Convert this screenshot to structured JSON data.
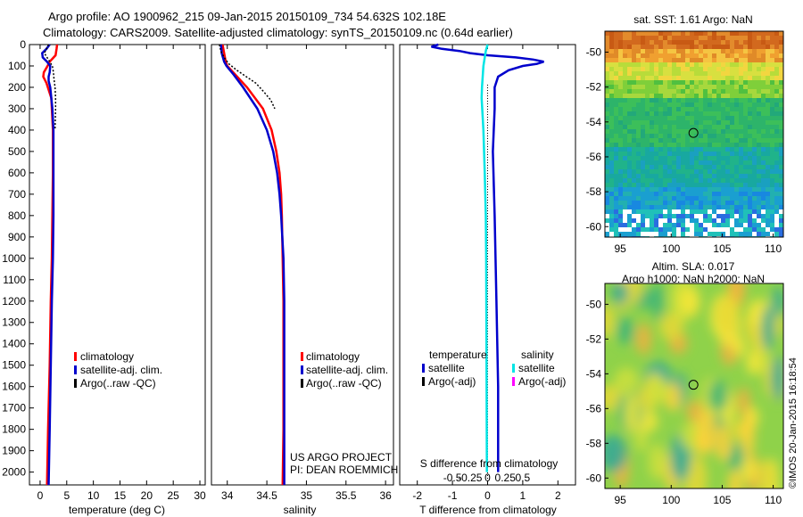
{
  "header": {
    "line1": "Argo profile: AO 1900962_215 09-Jan-2015 20150109_734 54.632S 102.18E",
    "line2": "Climatology: CARS2009. Satellite-adjusted climatology: synTS_20150109.nc (0.64d earlier)"
  },
  "credit": {
    "line1": "US ARGO PROJECT",
    "line2": "PI: DEAN ROEMMICH"
  },
  "stamp": "©IMOS 20-Jan-2015 16:18:54",
  "colors": {
    "climatology": "#ff0000",
    "satellite": "#0000cc",
    "argo": "#000000",
    "salinity_satellite": "#00e5e5",
    "salinity_argo": "#ff00ff"
  },
  "chart_data": [
    {
      "type": "line",
      "xlabel": "temperature (deg C)",
      "ylabel": "",
      "xlim": [
        -2,
        31
      ],
      "ylim": [
        2060,
        0
      ],
      "xticks": [
        0,
        5,
        10,
        15,
        20,
        25,
        30
      ],
      "yticks": [
        0,
        100,
        200,
        300,
        400,
        500,
        600,
        700,
        800,
        900,
        1000,
        1100,
        1200,
        1300,
        1400,
        1500,
        1600,
        1700,
        1800,
        1900,
        2000
      ],
      "legend": [
        "climatology",
        "satellite-adj. clim.",
        "Argo(..raw -QC)"
      ],
      "legend_position": "lower-center",
      "series": [
        {
          "name": "climatology",
          "y": [
            0,
            20,
            50,
            80,
            100,
            130,
            150,
            180,
            250,
            400,
            600,
            800,
            1000,
            1200,
            1500,
            1800,
            2060
          ],
          "x": [
            3.2,
            3.1,
            2.9,
            1.8,
            1.4,
            0.7,
            0.6,
            1.2,
            2.1,
            2.4,
            2.4,
            2.3,
            2.2,
            2.0,
            1.8,
            1.5,
            1.3
          ]
        },
        {
          "name": "satellite-adj. clim.",
          "y": [
            0,
            20,
            40,
            60,
            80,
            100,
            130,
            150,
            170,
            200,
            300,
            400,
            600,
            800,
            1000,
            1200,
            1500,
            1800,
            2060
          ],
          "x": [
            1.8,
            1.2,
            0.4,
            0.5,
            1.3,
            1.9,
            1.8,
            1.6,
            1.6,
            1.9,
            2.3,
            2.5,
            2.5,
            2.5,
            2.4,
            2.2,
            2.0,
            1.8,
            1.6
          ]
        },
        {
          "name": "Argo(..raw -QC)",
          "dashed": true,
          "y": [
            0,
            40,
            80,
            100,
            130,
            160,
            200,
            250,
            300,
            400
          ],
          "x": [
            1.6,
            0.8,
            1.8,
            2.3,
            2.5,
            2.6,
            2.8,
            2.9,
            2.9,
            2.8
          ]
        }
      ]
    },
    {
      "type": "line",
      "xlabel": "salinity",
      "ylabel": "",
      "xlim": [
        33.8,
        36.1
      ],
      "ylim": [
        2060,
        0
      ],
      "xticks": [
        34,
        34.5,
        35,
        35.5,
        36
      ],
      "legend": [
        "climatology",
        "satellite-adj. clim.",
        "Argo(..raw -QC)"
      ],
      "legend_position": "lower-center",
      "series": [
        {
          "name": "climatology",
          "y": [
            0,
            40,
            80,
            100,
            140,
            200,
            300,
            400,
            500,
            600,
            700,
            800,
            1000,
            1200,
            1500,
            1800,
            2060
          ],
          "x": [
            33.94,
            33.96,
            33.98,
            34.0,
            34.1,
            34.25,
            34.45,
            34.56,
            34.62,
            34.66,
            34.68,
            34.69,
            34.7,
            34.71,
            34.71,
            34.71,
            34.7
          ]
        },
        {
          "name": "satellite-adj. clim.",
          "y": [
            0,
            40,
            80,
            100,
            140,
            200,
            300,
            400,
            500,
            600,
            700,
            800,
            1000,
            1200,
            1500,
            1800,
            2060
          ],
          "x": [
            33.92,
            33.93,
            33.96,
            33.99,
            34.08,
            34.2,
            34.38,
            34.5,
            34.58,
            34.63,
            34.66,
            34.68,
            34.71,
            34.72,
            34.72,
            34.72,
            34.72
          ]
        },
        {
          "name": "Argo(..raw -QC)",
          "dashed": true,
          "y": [
            0,
            30,
            60,
            90,
            120,
            150,
            180,
            220,
            260,
            300
          ],
          "x": [
            33.9,
            33.92,
            33.96,
            34.02,
            34.12,
            34.24,
            34.36,
            34.46,
            34.55,
            34.6
          ]
        }
      ]
    },
    {
      "type": "line",
      "xlabel": "T difference from climatology",
      "xlabel_top": "S difference from climatology",
      "ylabel": "",
      "xlim": [
        -2.5,
        2.5
      ],
      "ylim": [
        2060,
        0
      ],
      "xticks": [
        -2,
        -1,
        0,
        1,
        2
      ],
      "xticks_top": [
        "-0.5",
        "-0.25",
        "0",
        "0.25",
        "0.5"
      ],
      "legend_temperature_title": "temperature",
      "legend_salinity_title": "salinity",
      "legend_temperature": [
        "satellite",
        "Argo(-adj)"
      ],
      "legend_salinity": [
        "satellite",
        "Argo(-adj)"
      ],
      "series": [
        {
          "name": "satellite",
          "y": [
            0,
            10,
            20,
            30,
            40,
            50,
            60,
            70,
            80,
            90,
            100,
            120,
            150,
            200,
            300,
            500,
            800,
            1200,
            1600,
            2000
          ],
          "x": [
            -1.4,
            -1.6,
            -1.3,
            -0.8,
            -0.5,
            0.0,
            0.8,
            1.3,
            1.6,
            1.4,
            1.0,
            0.6,
            0.3,
            0.2,
            0.2,
            0.15,
            0.2,
            0.25,
            0.3,
            0.3
          ]
        },
        {
          "name": "salinity satellite",
          "y": [
            0,
            30,
            60,
            100,
            150,
            200,
            250,
            400,
            600,
            800,
            1000,
            1500,
            2000
          ],
          "x": [
            0.0,
            -0.05,
            -0.08,
            -0.12,
            -0.14,
            -0.16,
            -0.17,
            -0.12,
            -0.08,
            -0.05,
            -0.04,
            -0.03,
            -0.02
          ]
        }
      ]
    },
    {
      "type": "heatmap",
      "title": "sat. SST: 1.61  Argo: NaN",
      "xlim": [
        93.5,
        111
      ],
      "ylim": [
        -60.6,
        -48.8
      ],
      "xticks": [
        95,
        100,
        105,
        110
      ],
      "yticks": [
        -50,
        -52,
        -54,
        -56,
        -58,
        -60
      ],
      "marker": {
        "lon": 102.18,
        "lat": -54.632
      }
    },
    {
      "type": "heatmap",
      "title": "Altim. SLA: 0.017",
      "title2": "Argo h1000: NaN  h2000: NaN",
      "xlim": [
        93.5,
        111
      ],
      "ylim": [
        -60.6,
        -48.8
      ],
      "xticks": [
        95,
        100,
        105,
        110
      ],
      "yticks": [
        -50,
        -52,
        -54,
        -56,
        -58,
        -60
      ],
      "marker": {
        "lon": 102.18,
        "lat": -54.632
      }
    }
  ]
}
